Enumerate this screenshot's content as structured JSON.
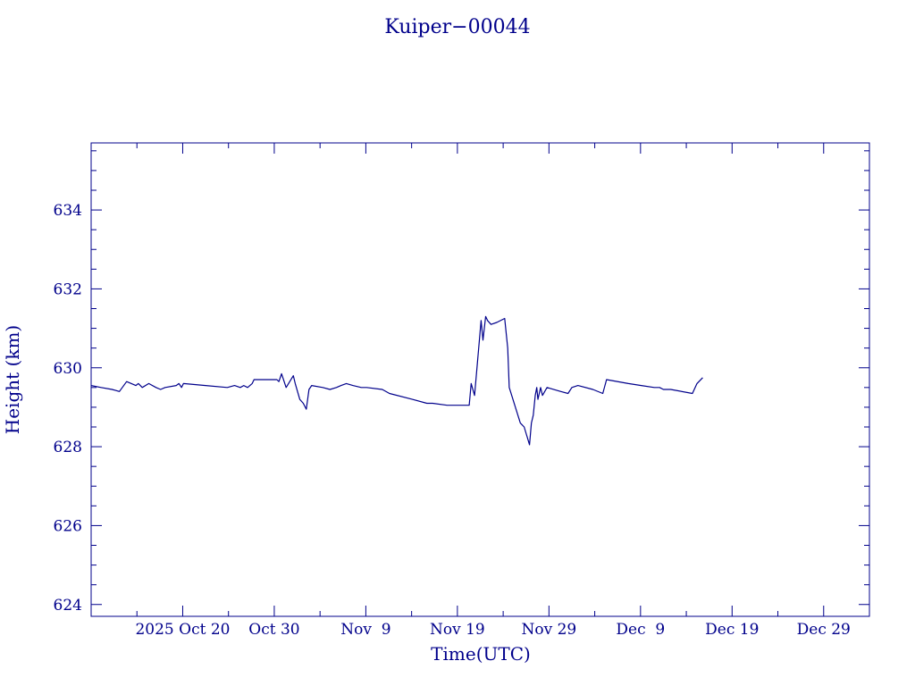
{
  "chart_data": {
    "type": "line",
    "title": "Kuiper−00044",
    "xlabel": "Time(UTC)",
    "ylabel": "Height (km)",
    "color": "#00008b",
    "grid": false,
    "legend": "none",
    "xlim": [
      "2025-10-10",
      "2026-01-03"
    ],
    "ylim": [
      623.7,
      635.7
    ],
    "x_ticks": [
      {
        "date": "2025-10-20",
        "label": "2025 Oct 20"
      },
      {
        "date": "2025-10-30",
        "label": "Oct 30"
      },
      {
        "date": "2025-11-09",
        "label": "Nov  9"
      },
      {
        "date": "2025-11-19",
        "label": "Nov 19"
      },
      {
        "date": "2025-11-29",
        "label": "Nov 29"
      },
      {
        "date": "2025-12-09",
        "label": "Dec  9"
      },
      {
        "date": "2025-12-19",
        "label": "Dec 19"
      },
      {
        "date": "2025-12-29",
        "label": "Dec 29"
      }
    ],
    "x_minor_ticks": [
      "2025-10-15",
      "2025-10-25",
      "2025-11-04",
      "2025-11-14",
      "2025-11-24",
      "2025-12-04",
      "2025-12-14",
      "2025-12-24",
      "2026-01-03"
    ],
    "y_ticks": [
      {
        "value": 624,
        "label": "624"
      },
      {
        "value": 626,
        "label": "626"
      },
      {
        "value": 628,
        "label": "628"
      },
      {
        "value": 630,
        "label": "630"
      },
      {
        "value": 632,
        "label": "632"
      },
      {
        "value": 634,
        "label": "634"
      }
    ],
    "y_minor_step": 0.5,
    "series": [
      {
        "name": "",
        "x": [
          "2025-10-10 00:00",
          "2025-10-11 02:00",
          "2025-10-12 07:00",
          "2025-10-13 02:00",
          "2025-10-13 21:00",
          "2025-10-14 21:00",
          "2025-10-15 04:00",
          "2025-10-15 14:00",
          "2025-10-16 07:00",
          "2025-10-17 02:00",
          "2025-10-17 14:00",
          "2025-10-18 02:00",
          "2025-10-19 07:00",
          "2025-10-19 14:00",
          "2025-10-19 21:00",
          "2025-10-20 02:00",
          "2025-10-22 12:00",
          "2025-10-24 21:00",
          "2025-10-25 16:00",
          "2025-10-26 07:00",
          "2025-10-26 16:00",
          "2025-10-27 02:00",
          "2025-10-27 14:00",
          "2025-10-27 19:00",
          "2025-10-29 14:00",
          "2025-10-30 07:00",
          "2025-10-30 12:00",
          "2025-10-30 19:00",
          "2025-10-31 07:00",
          "2025-11-01 02:00",
          "2025-11-01 07:00",
          "2025-11-01 19:00",
          "2025-11-02 04:00",
          "2025-11-02 12:00",
          "2025-11-02 19:00",
          "2025-11-03 02:00",
          "2025-11-04 07:00",
          "2025-11-05 02:00",
          "2025-11-05 19:00",
          "2025-11-06 07:00",
          "2025-11-06 21:00",
          "2025-11-07 14:00",
          "2025-11-08 12:00",
          "2025-11-09 02:00",
          "2025-11-10 19:00",
          "2025-11-11 14:00",
          "2025-11-14 02:00",
          "2025-11-15 16:00",
          "2025-11-16 07:00",
          "2025-11-17 21:00",
          "2025-11-20 07:00",
          "2025-11-20 12:00",
          "2025-11-20 21:00",
          "2025-11-21 14:00",
          "2025-11-21 19:00",
          "2025-11-22 02:00",
          "2025-11-22 07:00",
          "2025-11-22 16:00",
          "2025-11-23 07:00",
          "2025-11-24 04:00",
          "2025-11-24 12:00",
          "2025-11-24 16:00",
          "2025-11-25 21:00",
          "2025-11-26 07:00",
          "2025-11-26 21:00",
          "2025-11-27 02:00",
          "2025-11-27 07:00",
          "2025-11-27 12:00",
          "2025-11-27 16:00",
          "2025-11-27 19:00",
          "2025-11-28 02:00",
          "2025-11-28 07:00",
          "2025-11-28 19:00",
          "2025-11-30 07:00",
          "2025-12-01 02:00",
          "2025-12-01 12:00",
          "2025-12-02 04:00",
          "2025-12-03 19:00",
          "2025-12-04 21:00",
          "2025-12-05 07:00",
          "2025-12-07 16:00",
          "2025-12-09 02:00",
          "2025-12-10 12:00",
          "2025-12-11 02:00",
          "2025-12-11 12:00",
          "2025-12-12 07:00",
          "2025-12-14 16:00",
          "2025-12-15 04:00",
          "2025-12-15 19:00"
        ],
        "y": [
          629.55,
          629.5,
          629.45,
          629.4,
          629.65,
          629.55,
          629.6,
          629.5,
          629.6,
          629.5,
          629.45,
          629.5,
          629.55,
          629.6,
          629.5,
          629.6,
          629.55,
          629.5,
          629.55,
          629.5,
          629.55,
          629.5,
          629.6,
          629.7,
          629.7,
          629.7,
          629.65,
          629.85,
          629.5,
          629.8,
          629.6,
          629.2,
          629.1,
          628.95,
          629.45,
          629.55,
          629.5,
          629.45,
          629.5,
          629.55,
          629.6,
          629.55,
          629.5,
          629.5,
          629.45,
          629.35,
          629.2,
          629.1,
          629.1,
          629.05,
          629.05,
          629.6,
          629.3,
          631.2,
          630.7,
          631.3,
          631.2,
          631.1,
          631.15,
          631.25,
          630.5,
          629.5,
          628.6,
          628.5,
          628.05,
          628.6,
          628.8,
          629.3,
          629.5,
          629.2,
          629.5,
          629.3,
          629.5,
          629.4,
          629.35,
          629.5,
          629.55,
          629.45,
          629.35,
          629.7,
          629.6,
          629.55,
          629.5,
          629.5,
          629.45,
          629.45,
          629.35,
          629.6,
          629.75
        ]
      }
    ]
  }
}
